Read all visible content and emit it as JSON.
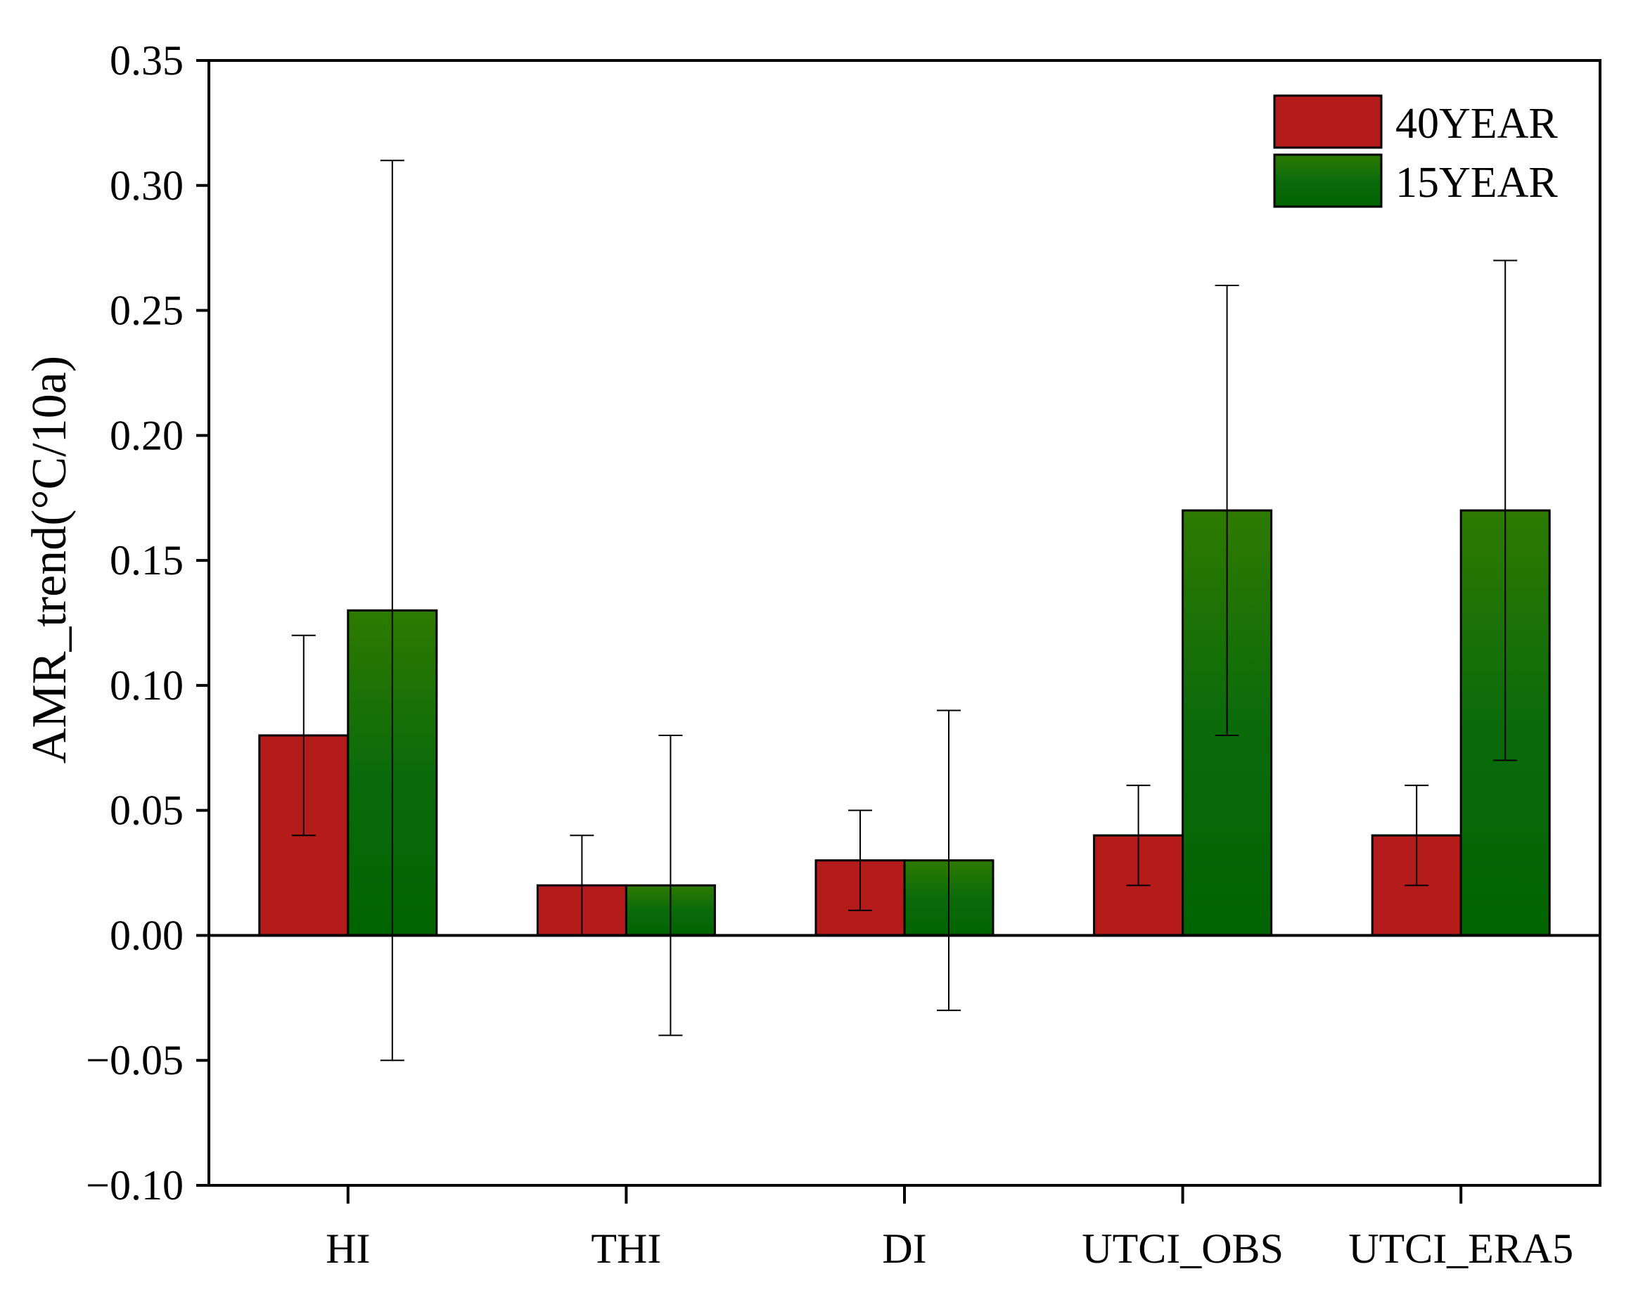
{
  "chart_data": {
    "type": "bar",
    "title": "",
    "xlabel": "",
    "ylabel": "AMR_trend(°C/10a)",
    "ylim": [
      -0.1,
      0.35
    ],
    "yticks": [
      -0.1,
      -0.05,
      0.0,
      0.05,
      0.1,
      0.15,
      0.2,
      0.25,
      0.3,
      0.35
    ],
    "ytick_labels": [
      "−0.10",
      "−0.05",
      "0.00",
      "0.05",
      "0.10",
      "0.15",
      "0.20",
      "0.25",
      "0.30",
      "0.35"
    ],
    "categories": [
      "HI",
      "THI",
      "DI",
      "UTCI_OBS",
      "UTCI_ERA5"
    ],
    "legend_position": "top-right",
    "grid": false,
    "series": [
      {
        "name": "40YEAR",
        "color": "#b31c1a",
        "values": [
          0.08,
          0.02,
          0.03,
          0.04,
          0.04
        ],
        "error_low": [
          0.04,
          0.0,
          0.01,
          0.02,
          0.02
        ],
        "error_high": [
          0.12,
          0.04,
          0.05,
          0.06,
          0.06
        ]
      },
      {
        "name": "15YEAR",
        "color": "#0b6b0b",
        "color_top": "#2e7a00",
        "values": [
          0.13,
          0.02,
          0.03,
          0.17,
          0.17
        ],
        "error_low": [
          -0.05,
          -0.04,
          -0.03,
          0.08,
          0.07
        ],
        "error_high": [
          0.31,
          0.08,
          0.09,
          0.26,
          0.27
        ]
      }
    ]
  }
}
